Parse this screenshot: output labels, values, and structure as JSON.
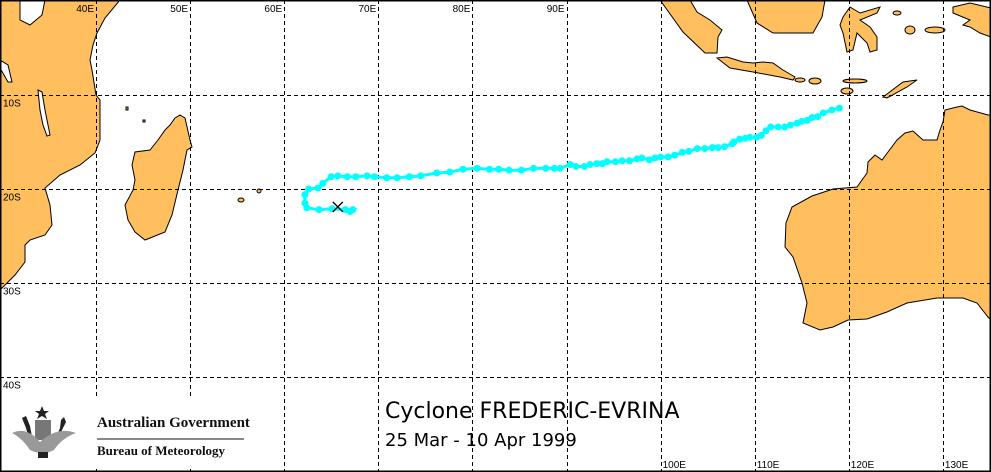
{
  "title": "Cyclone FREDERIC-EVRINA",
  "dates": "25 Mar - 10 Apr 1999",
  "logo": {
    "line1": "Australian Government",
    "line2": "Bureau of Meteorology"
  },
  "colors": {
    "land": "#FFBF5F",
    "track": "#00FFFF",
    "grid": "#000000",
    "sea": "#FFFFFF"
  },
  "grid": {
    "top_lons": [
      {
        "lon": 40,
        "label": "40E"
      },
      {
        "lon": 50,
        "label": "50E"
      },
      {
        "lon": 60,
        "label": "60E"
      },
      {
        "lon": 70,
        "label": "70E"
      },
      {
        "lon": 80,
        "label": "80E"
      },
      {
        "lon": 90,
        "label": "90E"
      }
    ],
    "bottom_lons": [
      {
        "lon": 100,
        "label": "100E"
      },
      {
        "lon": 110,
        "label": "110E"
      },
      {
        "lon": 120,
        "label": "120E"
      },
      {
        "lon": 130,
        "label": "130E"
      }
    ],
    "lats": [
      {
        "lat": -10,
        "label": "10S"
      },
      {
        "lat": -20,
        "label": "20S"
      },
      {
        "lat": -30,
        "label": "30S"
      },
      {
        "lat": -40,
        "label": "40S"
      }
    ]
  },
  "chart_data": {
    "type": "map-track",
    "name": "FREDERIC-EVRINA",
    "period": "25 Mar - 10 Apr 1999",
    "lon": [
      119.0,
      118.2,
      117.3,
      116.7,
      116.1,
      115.6,
      115.0,
      114.5,
      113.8,
      113.2,
      112.5,
      111.7,
      111.2,
      110.7,
      110.2,
      109.5,
      109.0,
      108.4,
      107.8,
      107.6,
      106.8,
      106.1,
      105.5,
      104.7,
      103.9,
      103.0,
      102.3,
      101.5,
      100.8,
      100.0,
      99.4,
      98.8,
      98.0,
      97.5,
      96.7,
      95.9,
      95.2,
      94.3,
      93.8,
      93.2,
      92.5,
      91.9,
      91.0,
      90.4,
      89.3,
      88.7,
      87.8,
      86.5,
      85.2,
      83.9,
      82.8,
      81.8,
      80.5,
      79.0,
      77.6,
      76.2,
      74.5,
      73.3,
      72.0,
      70.9,
      69.6,
      68.8,
      67.6,
      66.7,
      65.7,
      65.0,
      64.1,
      63.6,
      62.6,
      62.2,
      62.2,
      62.4,
      63.7,
      65.1,
      66.5,
      67.3,
      67.0
    ],
    "lat": [
      -11.4,
      -11.6,
      -11.9,
      -12.3,
      -12.4,
      -12.7,
      -12.8,
      -13.0,
      -13.2,
      -13.4,
      -13.4,
      -13.4,
      -13.8,
      -14.3,
      -14.5,
      -14.5,
      -14.6,
      -14.7,
      -15.0,
      -15.2,
      -15.5,
      -15.6,
      -15.6,
      -15.7,
      -15.7,
      -16.0,
      -16.1,
      -16.4,
      -16.6,
      -16.6,
      -16.7,
      -16.9,
      -16.7,
      -16.8,
      -17.0,
      -17.0,
      -17.1,
      -17.1,
      -17.3,
      -17.3,
      -17.4,
      -17.6,
      -17.6,
      -17.4,
      -17.8,
      -17.8,
      -17.8,
      -17.8,
      -18.0,
      -18.0,
      -17.9,
      -17.9,
      -17.8,
      -17.9,
      -18.2,
      -18.3,
      -18.6,
      -18.7,
      -18.8,
      -18.8,
      -18.7,
      -18.6,
      -18.7,
      -18.7,
      -18.6,
      -18.7,
      -19.4,
      -19.9,
      -20.0,
      -20.6,
      -21.5,
      -22.0,
      -22.2,
      -22.1,
      -22.2,
      -22.2,
      -22.4
    ],
    "x_marker": {
      "lon": 65.7,
      "lat": -21.9
    },
    "lon_range": [
      30.0,
      135.0
    ],
    "lat_range": [
      -50.0,
      0.0
    ]
  }
}
